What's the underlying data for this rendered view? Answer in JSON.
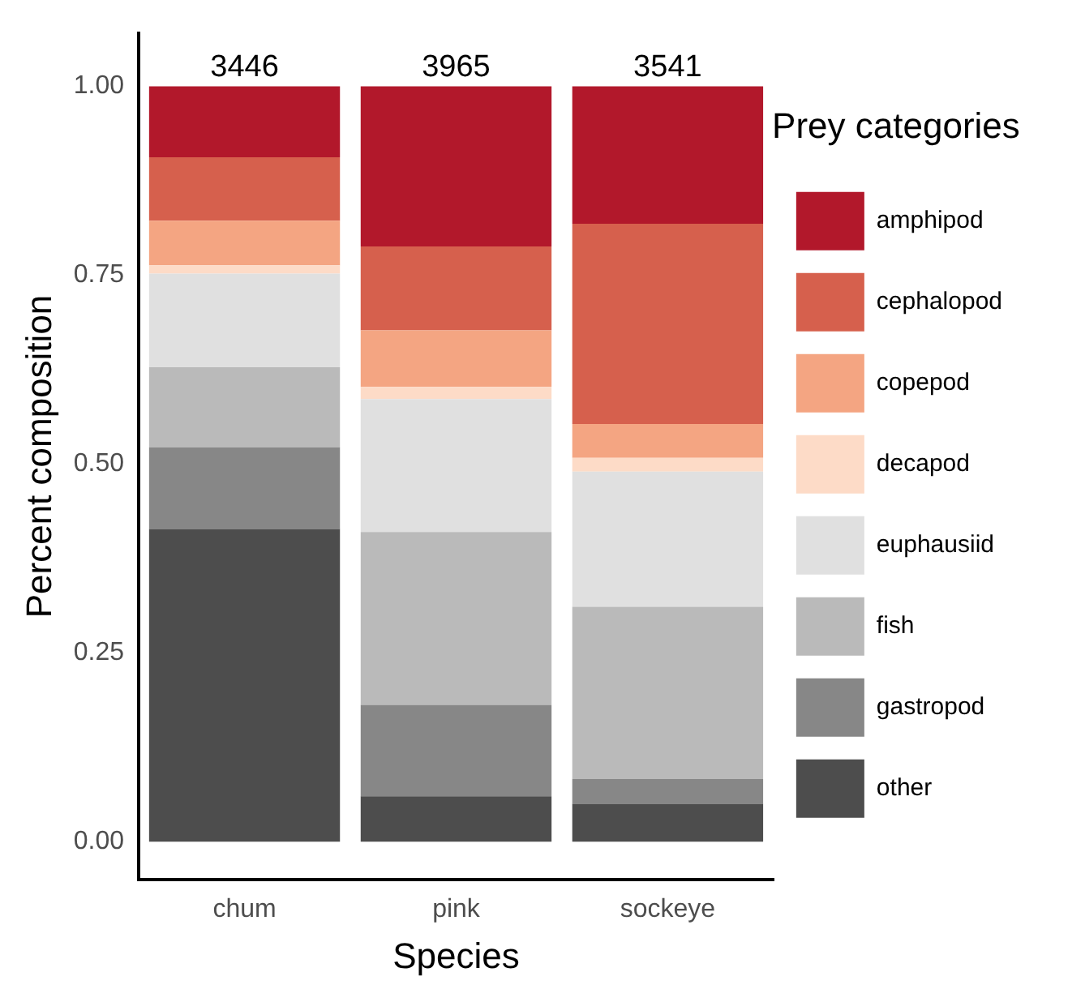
{
  "chart_data": {
    "type": "bar",
    "stacked": true,
    "xlabel": "Species",
    "ylabel": "Percent composition",
    "legend_title": "Prey categories",
    "legend": "right",
    "grid": false,
    "categories": [
      "chum",
      "pink",
      "sockeye"
    ],
    "ylim": [
      -0.05,
      1.07
    ],
    "yticks": [
      {
        "value": 0,
        "label": "0.00"
      },
      {
        "value": 0.25,
        "label": "0.25"
      },
      {
        "value": 0.5,
        "label": "0.50"
      },
      {
        "value": 0.75,
        "label": "0.75"
      },
      {
        "value": 1,
        "label": "1.00"
      }
    ],
    "annotations": [
      {
        "text": "3446",
        "x": "chum",
        "y": 1
      },
      {
        "text": "3965",
        "x": "pink",
        "y": 1
      },
      {
        "text": "3541",
        "x": "sockeye",
        "y": 1
      }
    ],
    "series": [
      {
        "name": "other",
        "color": "#4d4d4d",
        "values": [
          0.414,
          0.06,
          0.05
        ]
      },
      {
        "name": "gastropod",
        "color": "#878787",
        "values": [
          0.108,
          0.121,
          0.033
        ]
      },
      {
        "name": "fish",
        "color": "#bababa",
        "values": [
          0.106,
          0.229,
          0.228
        ]
      },
      {
        "name": "euphausiid",
        "color": "#e0e0e0",
        "values": [
          0.124,
          0.176,
          0.179
        ]
      },
      {
        "name": "decapod",
        "color": "#fddbc7",
        "values": [
          0.011,
          0.016,
          0.018
        ]
      },
      {
        "name": "copepod",
        "color": "#f4a582",
        "values": [
          0.059,
          0.075,
          0.045
        ]
      },
      {
        "name": "cephalopod",
        "color": "#d6604d",
        "values": [
          0.084,
          0.111,
          0.265
        ]
      },
      {
        "name": "amphipod",
        "color": "#b2182b",
        "values": [
          0.094,
          0.212,
          0.182
        ]
      }
    ]
  }
}
